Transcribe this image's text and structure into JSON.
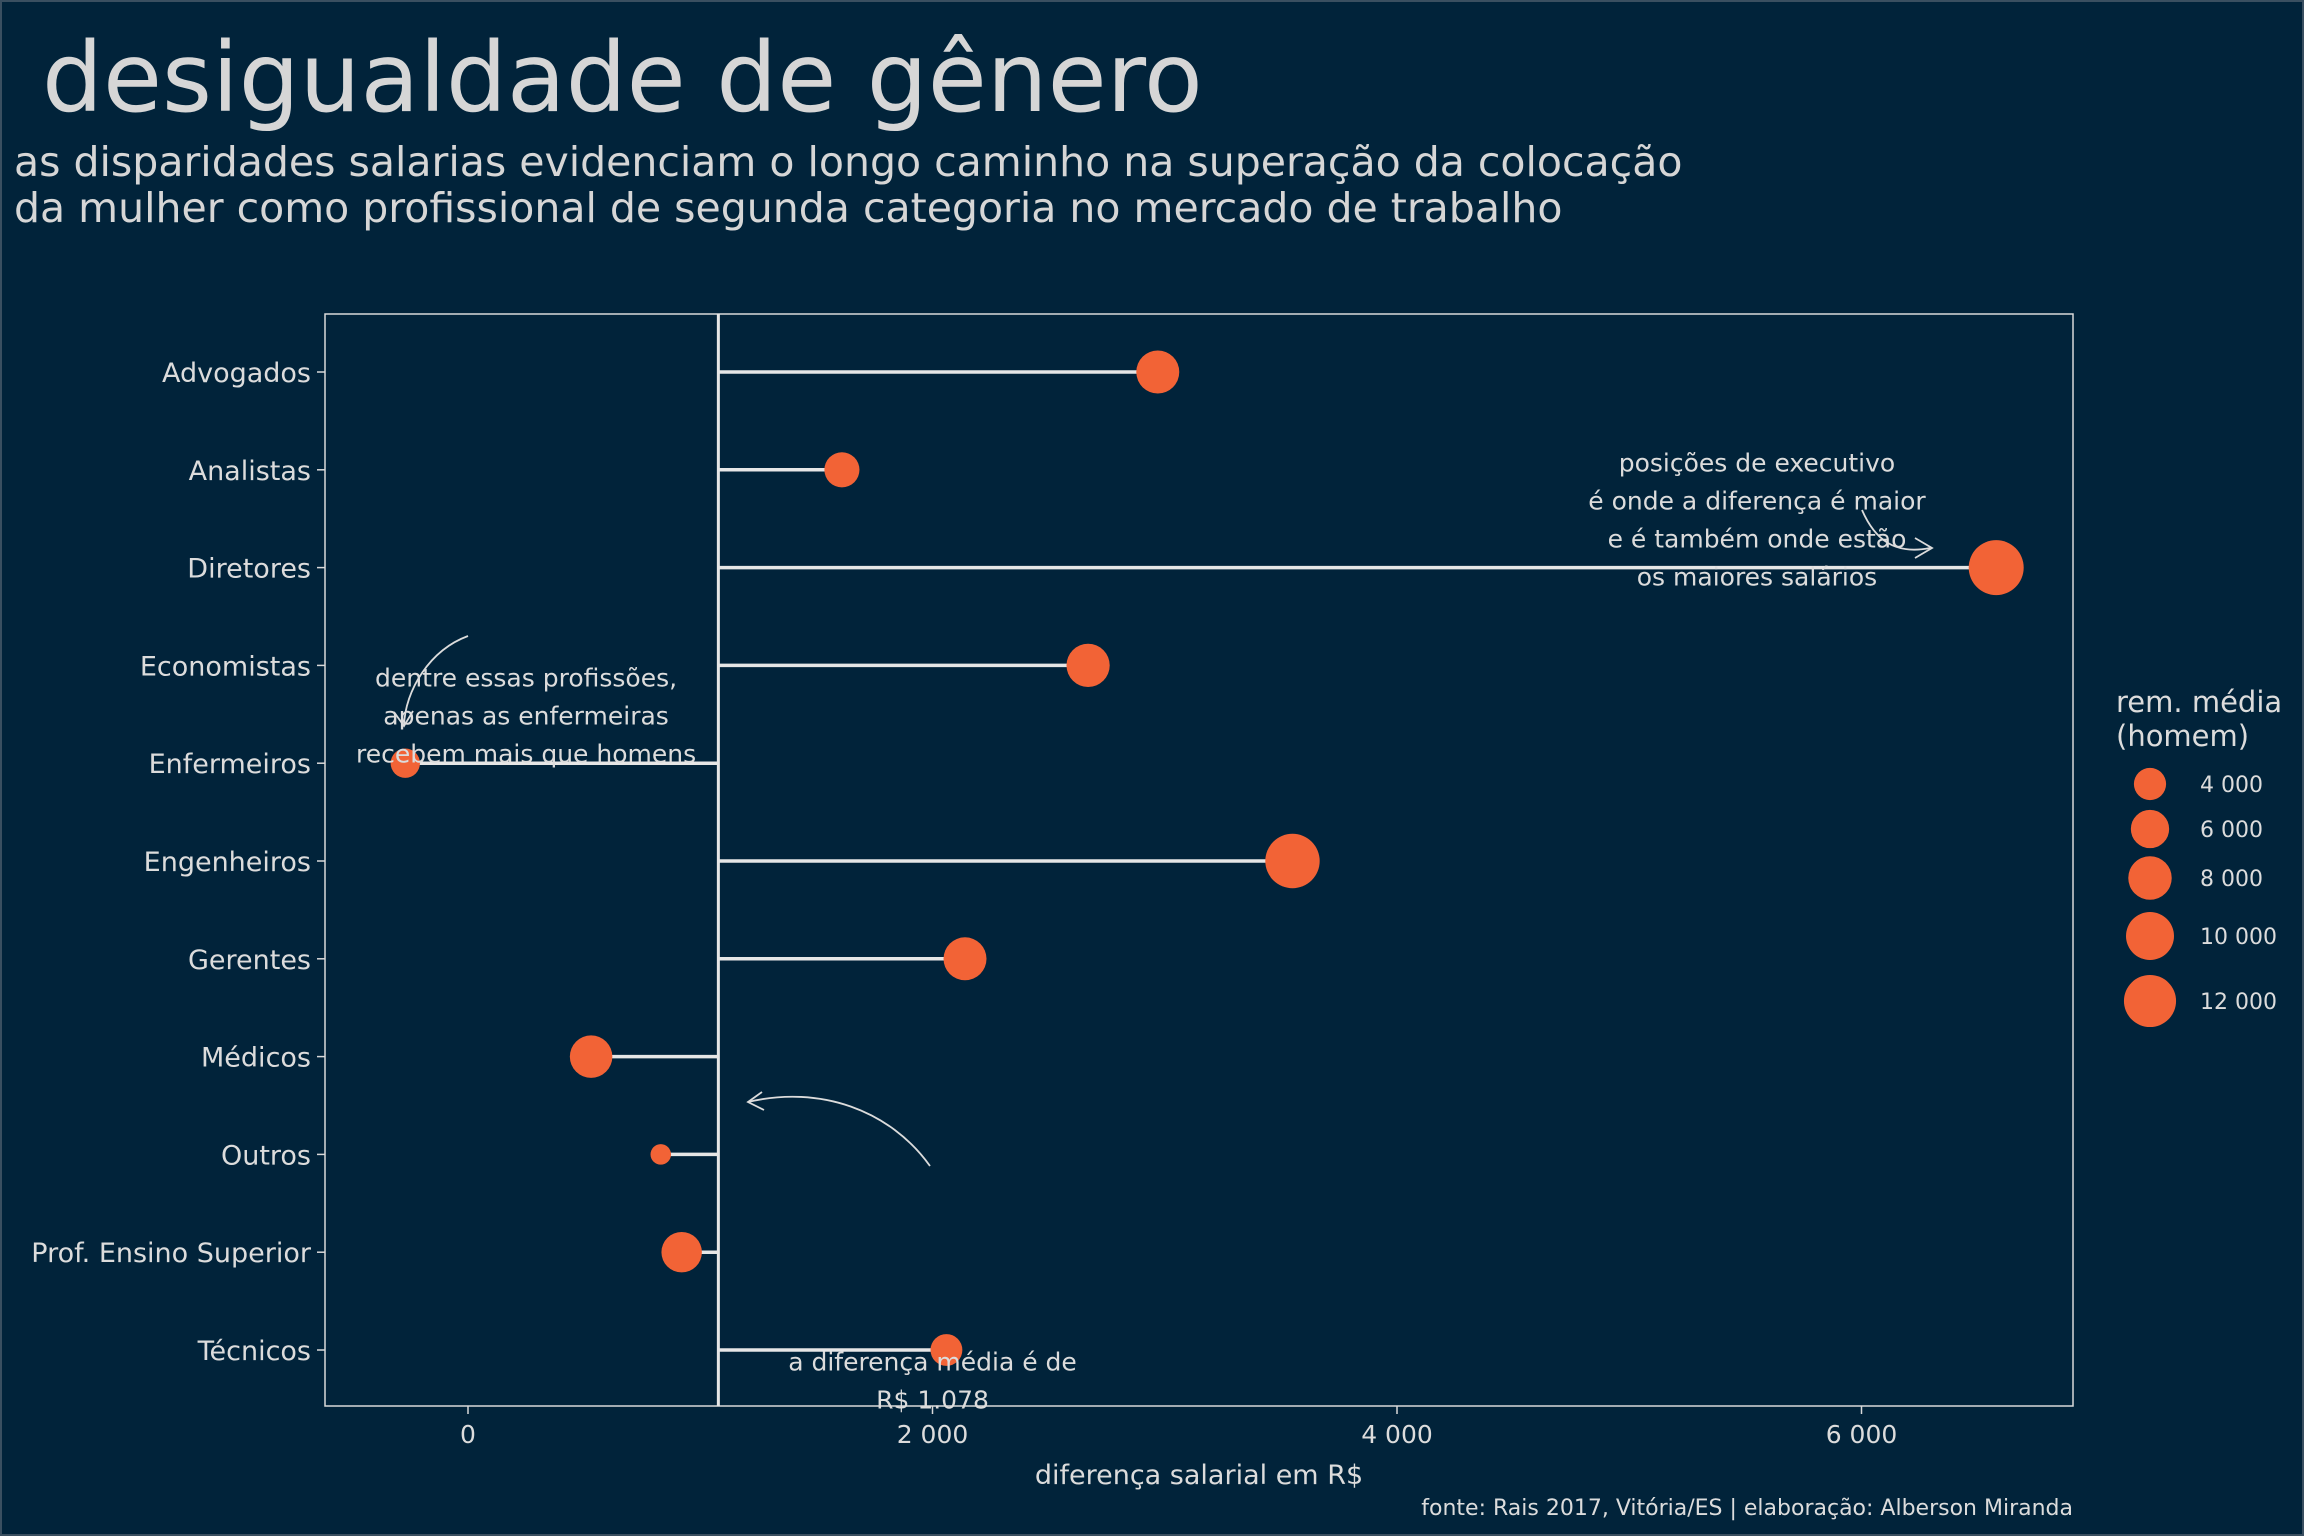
{
  "title": "desigualdade de gênero",
  "subtitle_lines": [
    "as disparidades salarias evidenciam o longo caminho na superação da colocação",
    "da mulher como profissional de segunda categoria no mercado de trabalho"
  ],
  "caption": "fonte: Rais 2017, Vitória/ES | elaboração: Alberson Miranda",
  "colors": {
    "background": "#01233a",
    "point": "#f26336",
    "segment": "#e6e6e6",
    "text": "#dcdcdc"
  },
  "chart_data": {
    "type": "scatter",
    "geom": "lollipop",
    "xlabel": "diferença salarial em R$",
    "ylabel": "",
    "xlim": [
      -600,
      6950
    ],
    "x_ticks": [
      {
        "value": 0,
        "label": "0"
      },
      {
        "value": 2000,
        "label": "2 000"
      },
      {
        "value": 4000,
        "label": "4 000"
      },
      {
        "value": 6000,
        "label": "6 000"
      }
    ],
    "reference_line": {
      "x": 1078
    },
    "grid": false,
    "categories": [
      "Advogados",
      "Analistas",
      "Diretores",
      "Economistas",
      "Enfermeiros",
      "Engenheiros",
      "Gerentes",
      "Médicos",
      "Outros",
      "Prof. Ensino Superior",
      "Técnicos"
    ],
    "values": [
      2970,
      1610,
      6580,
      2670,
      -270,
      3550,
      2140,
      530,
      830,
      920,
      2060
    ],
    "sizes": [
      7800,
      4900,
      13500,
      7900,
      3200,
      13200,
      7800,
      7600,
      1300,
      6800,
      3900
    ],
    "legend": {
      "title": "rem. média (homem)",
      "title_lines": [
        "rem. média",
        "(homem)"
      ],
      "position": "right",
      "entries": [
        {
          "value": 4000,
          "label": "4 000"
        },
        {
          "value": 6000,
          "label": "6 000"
        },
        {
          "value": 8000,
          "label": "8 000"
        },
        {
          "value": 10000,
          "label": "10 000"
        },
        {
          "value": 12000,
          "label": "12 000"
        }
      ]
    },
    "annotations": [
      {
        "lines": [
          "posições de executivo",
          "é onde a diferença é maior",
          "e é também onde estão",
          "os maiores salários"
        ],
        "x": 5550,
        "y": 1.5,
        "arrow_to": {
          "x": 6320,
          "y": 3
        }
      },
      {
        "lines": [
          "dentre essas profissões,",
          "apenas as enfermeiras",
          "recebem mais que homens"
        ],
        "x": 250,
        "y": 3.5,
        "arrow_to": {
          "x": -270,
          "y": 4.6
        }
      },
      {
        "lines": [
          "a diferença média é de",
          "R$ 1.078"
        ],
        "x": 2000,
        "y": 10.3,
        "arrow_to": {
          "x": 1200,
          "y": 8.45
        }
      }
    ]
  }
}
